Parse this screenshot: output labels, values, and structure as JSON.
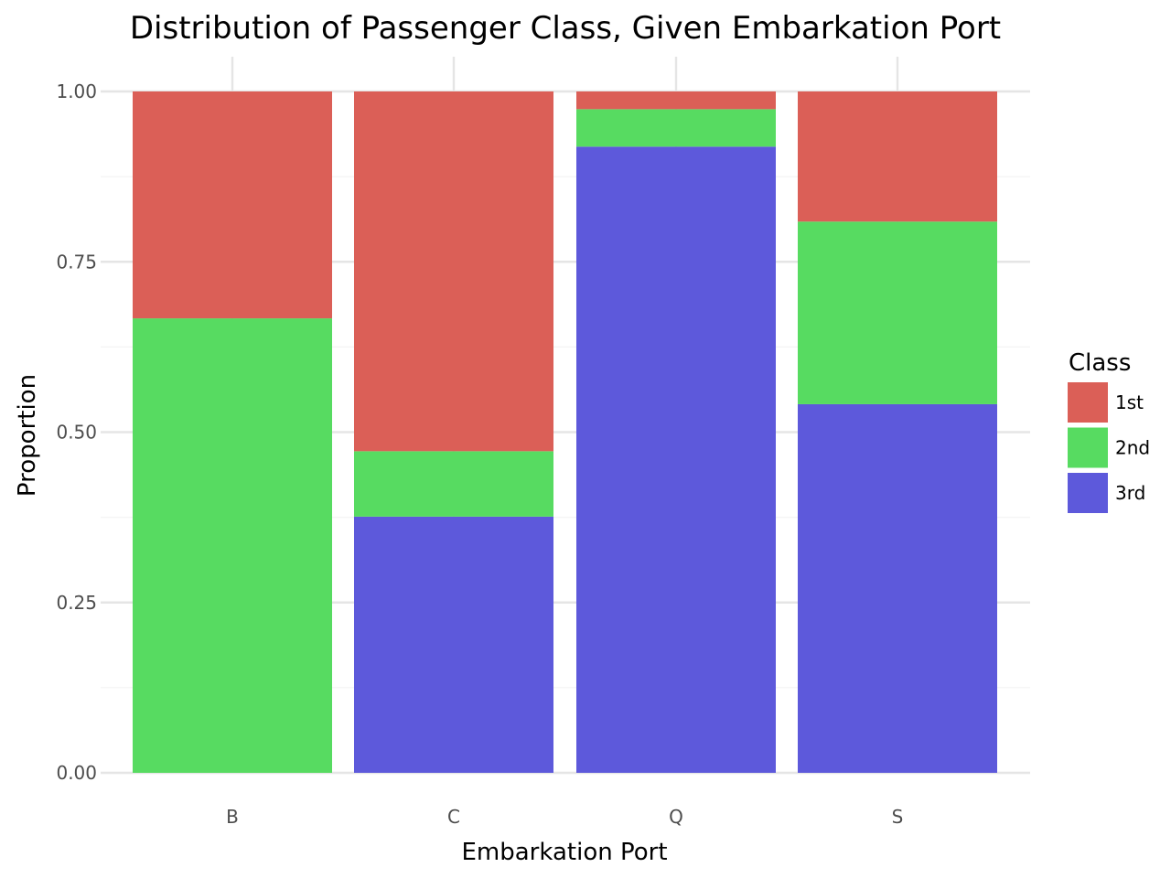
{
  "chart_data": {
    "type": "bar",
    "stacked": true,
    "title": "Distribution of Passenger Class, Given Embarkation Port",
    "xlabel": "Embarkation Port",
    "ylabel": "Proportion",
    "ylim": [
      0,
      1
    ],
    "yticks": [
      "0.00",
      "0.25",
      "0.50",
      "0.75",
      "1.00"
    ],
    "categories": [
      "B",
      "C",
      "Q",
      "S"
    ],
    "grid": true,
    "legend": {
      "title": "Class",
      "placement": "right"
    },
    "series": [
      {
        "name": "3rd",
        "color": "#5d59db",
        "values": [
          0.0,
          0.376,
          0.919,
          0.541
        ]
      },
      {
        "name": "2nd",
        "color": "#57db61",
        "values": [
          0.667,
          0.096,
          0.055,
          0.268
        ]
      },
      {
        "name": "1st",
        "color": "#db5f57",
        "values": [
          0.333,
          0.528,
          0.026,
          0.191
        ]
      }
    ],
    "legend_order": [
      "1st",
      "2nd",
      "3rd"
    ]
  }
}
